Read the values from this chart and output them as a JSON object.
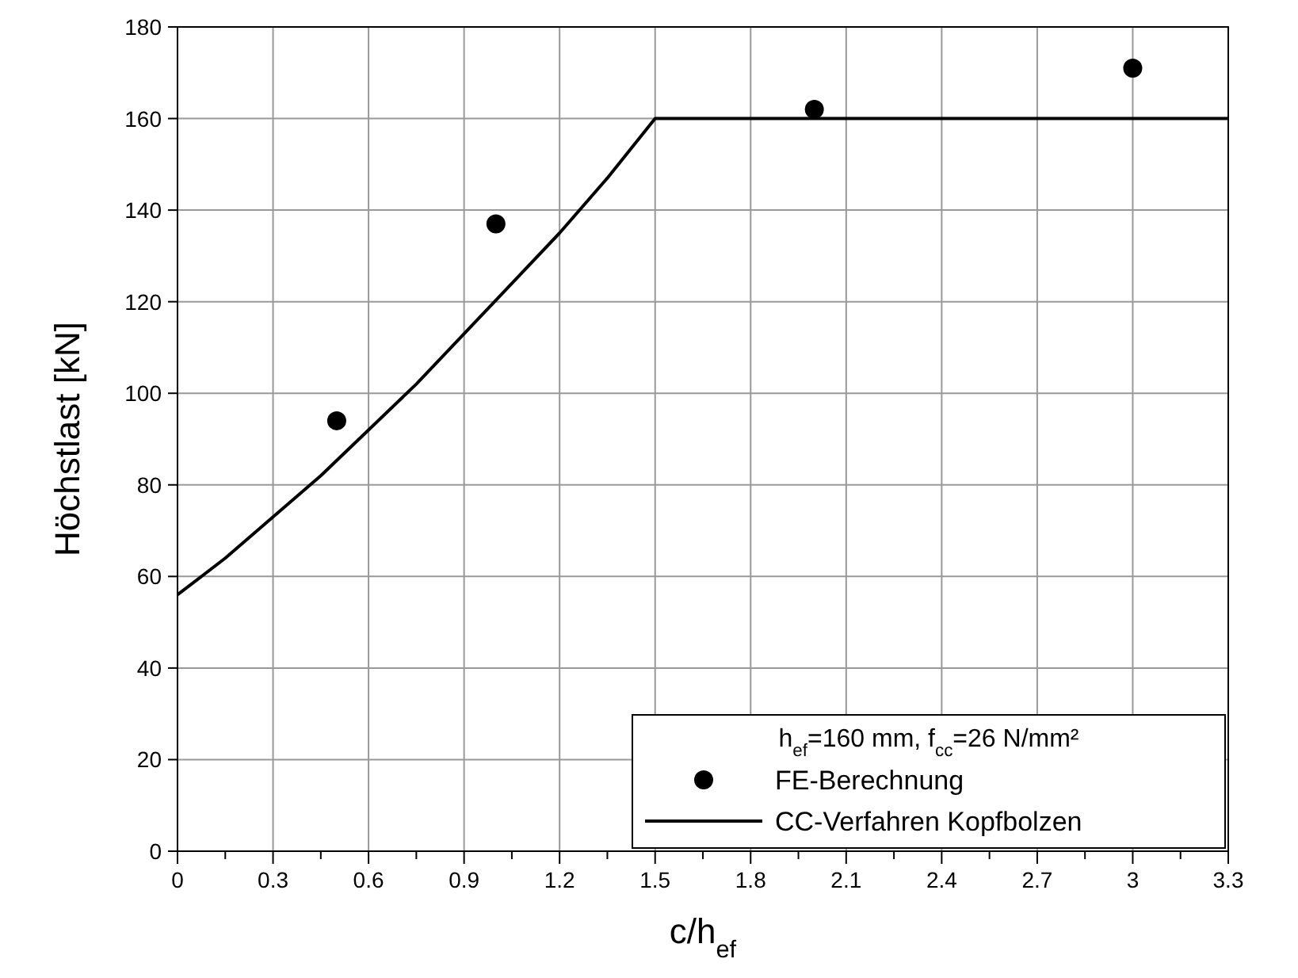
{
  "chart_data": {
    "type": "scatter",
    "xlabel": "c/h$_{ef}$",
    "ylabel": "Höchstlast [kN]",
    "legend_title": "h$_{ef}$=160 mm, f$_{cc}$=26 N/mm²",
    "legend": "bottom right",
    "grid": true,
    "xlim": [
      0,
      3.3
    ],
    "ylim": [
      0,
      180
    ],
    "xticks": [
      0,
      {
        "value": 0.15,
        "label": null
      },
      0.3,
      {
        "value": 0.45,
        "label": null
      },
      0.6,
      {
        "value": 0.75,
        "label": null
      },
      0.9,
      {
        "value": 1.05,
        "label": null
      },
      1.2,
      {
        "value": 1.35,
        "label": null
      },
      1.5,
      {
        "value": 1.65,
        "label": null
      },
      1.8,
      {
        "value": 1.95,
        "label": null
      },
      2.1,
      {
        "value": 2.25,
        "label": null
      },
      2.4,
      {
        "value": 2.55,
        "label": null
      },
      2.7,
      {
        "value": 2.85,
        "label": null
      },
      3,
      {
        "value": 3.15,
        "label": null
      },
      3.3
    ],
    "yticks": [
      0,
      20,
      40,
      60,
      80,
      100,
      120,
      140,
      160,
      180
    ],
    "series": [
      {
        "name": "FE-Berechnung",
        "color": "#000000",
        "marker": "circle",
        "x": [
          0.5,
          1,
          2,
          3
        ],
        "values": [
          94,
          137,
          162,
          171
        ]
      },
      {
        "name": "CC-Verfahren Kopfbolzen",
        "type": "line",
        "color": "#000000",
        "marker": "none",
        "line_style": "solid",
        "x": [
          0,
          0.15,
          0.3,
          0.45,
          0.6,
          0.75,
          0.9,
          1.05,
          1.2,
          1.35,
          1.5,
          3.3
        ],
        "values": [
          56,
          64,
          73,
          82,
          92,
          102,
          113,
          124,
          135,
          147,
          160,
          160
        ]
      }
    ]
  }
}
